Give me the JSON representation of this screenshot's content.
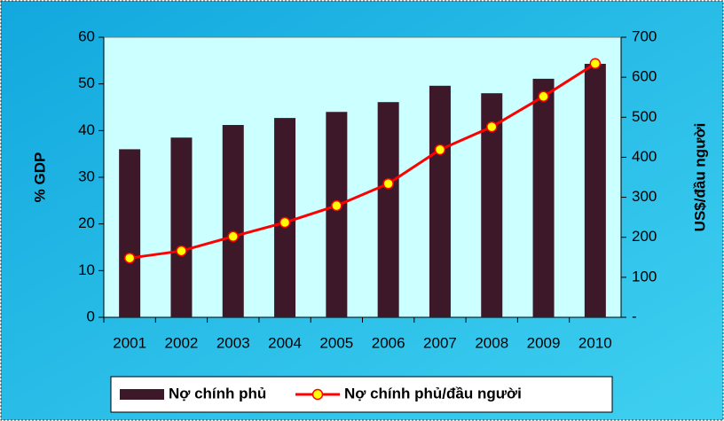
{
  "chart_data": {
    "type": "bar-line",
    "categories": [
      "2001",
      "2002",
      "2003",
      "2004",
      "2005",
      "2006",
      "2007",
      "2008",
      "2009",
      "2010"
    ],
    "series": [
      {
        "name": "Nợ chính phủ",
        "type": "bar",
        "color": "#3d1828",
        "values": [
          36,
          38.5,
          41.2,
          42.7,
          44,
          46.1,
          49.6,
          48,
          51.1,
          54.3
        ]
      },
      {
        "name": "Nợ chính phủ/đầu người",
        "type": "line",
        "axis": "y2",
        "color": "#ff0000",
        "marker_color": "#ffff00",
        "values": [
          148,
          166,
          202,
          237,
          279,
          334,
          419,
          476,
          552,
          634
        ]
      }
    ],
    "ylabel": "% GDP",
    "y2label": "US$/đầu người",
    "ylim": [
      0,
      60
    ],
    "yticks": [
      0,
      10,
      20,
      30,
      40,
      50,
      60
    ],
    "y2lim": [
      0,
      700
    ],
    "y2ticks": [
      {
        "value": 0,
        "label": "-"
      },
      100,
      200,
      300,
      400,
      500,
      600,
      700
    ],
    "legend": "bottom"
  }
}
